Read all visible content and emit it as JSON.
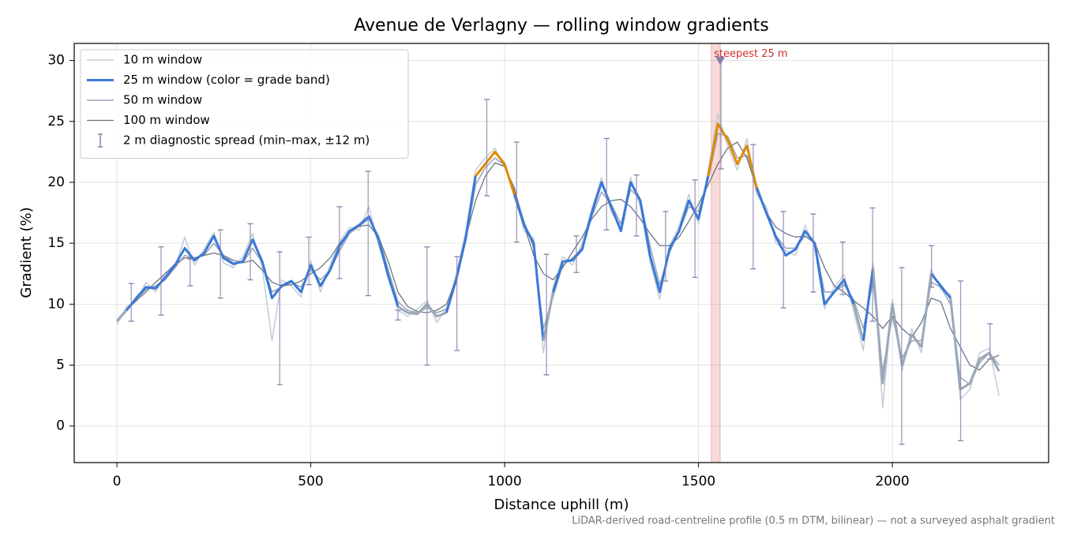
{
  "chart_data": {
    "type": "line",
    "title": "Avenue de Verlagny — rolling window gradients",
    "xlabel": "Distance uphill (m)",
    "ylabel": "Gradient (%)",
    "note": "LiDAR-derived road-centreline profile (0.5 m DTM, bilinear) — not a surveyed asphalt gradient",
    "xlim": [
      -110,
      2403
    ],
    "ylim": [
      -3,
      31.4
    ],
    "xticks": [
      0,
      500,
      1000,
      1500,
      2000
    ],
    "yticks": [
      0,
      5,
      10,
      15,
      20,
      25,
      30
    ],
    "grid": true,
    "legend": "upper left",
    "x": [
      0,
      25,
      50,
      75,
      100,
      125,
      150,
      175,
      200,
      225,
      250,
      275,
      300,
      325,
      350,
      375,
      400,
      425,
      450,
      475,
      500,
      525,
      550,
      575,
      600,
      625,
      650,
      675,
      700,
      725,
      750,
      775,
      800,
      825,
      850,
      875,
      900,
      925,
      950,
      975,
      1000,
      1025,
      1050,
      1075,
      1100,
      1125,
      1150,
      1175,
      1200,
      1225,
      1250,
      1275,
      1300,
      1325,
      1350,
      1375,
      1400,
      1425,
      1450,
      1475,
      1500,
      1525,
      1550,
      1575,
      1600,
      1625,
      1650,
      1675,
      1700,
      1725,
      1750,
      1775,
      1800,
      1825,
      1850,
      1875,
      1900,
      1925,
      1950,
      1975,
      2000,
      2025,
      2050,
      2075,
      2100,
      2125,
      2150,
      2175,
      2200,
      2225,
      2250,
      2275
    ],
    "series": [
      {
        "name": "10 m window",
        "color": "#c3ccd8",
        "width": 1.5,
        "values": [
          8.3,
          9.8,
          10.2,
          11.8,
          11.0,
          12.6,
          13.0,
          15.5,
          13.2,
          14.5,
          15.9,
          13.4,
          13.0,
          13.9,
          15.8,
          13.0,
          7.0,
          12.0,
          11.5,
          10.6,
          13.6,
          11.0,
          13.2,
          15.2,
          16.3,
          16.1,
          18.0,
          14.8,
          12.6,
          9.5,
          9.0,
          9.6,
          10.3,
          8.5,
          9.7,
          12.4,
          16.0,
          21.0,
          22.0,
          22.8,
          21.2,
          19.6,
          16.0,
          15.4,
          6.0,
          11.4,
          13.9,
          13.2,
          15.0,
          17.9,
          20.4,
          17.5,
          16.5,
          20.4,
          18.0,
          13.5,
          10.4,
          14.8,
          16.4,
          19.0,
          16.6,
          21.0,
          25.6,
          23.0,
          21.0,
          23.6,
          19.0,
          18.0,
          15.0,
          14.4,
          14.0,
          16.5,
          14.6,
          9.6,
          11.4,
          12.4,
          9.5,
          6.2,
          13.4,
          1.5,
          10.4,
          4.5,
          8.0,
          6.0,
          12.9,
          11.2,
          10.8,
          2.2,
          3.0,
          6.0,
          6.4,
          2.5
        ]
      },
      {
        "name": "25 m window (color = grade band)",
        "color": "#3a78d8",
        "width": 3,
        "banded": true,
        "band_thresholds": [
          10,
          20,
          25
        ],
        "band_colors": [
          "#9aa8b8",
          "#3a78d8",
          "#e08a00",
          "#b01818"
        ],
        "values": [
          8.6,
          9.5,
          10.5,
          11.4,
          11.3,
          12.2,
          13.2,
          14.6,
          13.6,
          14.2,
          15.6,
          13.8,
          13.3,
          13.5,
          15.3,
          13.5,
          10.5,
          11.5,
          11.9,
          11.0,
          13.2,
          11.5,
          12.8,
          14.8,
          16.0,
          16.5,
          17.2,
          15.3,
          12.3,
          9.8,
          9.3,
          9.2,
          10.0,
          9.0,
          9.3,
          12.0,
          15.5,
          20.5,
          21.5,
          22.5,
          21.5,
          19.0,
          16.5,
          15.0,
          7.0,
          11.0,
          13.5,
          13.6,
          14.5,
          17.5,
          20.0,
          18.0,
          16.0,
          20.0,
          18.5,
          14.0,
          11.0,
          14.5,
          16.0,
          18.5,
          17.0,
          20.5,
          24.8,
          23.5,
          21.5,
          23.0,
          19.5,
          17.5,
          15.5,
          14.0,
          14.5,
          16.0,
          15.0,
          10.0,
          11.0,
          12.0,
          10.0,
          7.0,
          13.0,
          3.5,
          10.0,
          5.0,
          7.5,
          6.5,
          12.5,
          11.5,
          10.5,
          3.0,
          3.5,
          5.5,
          6.0,
          4.5
        ]
      },
      {
        "name": "50 m window",
        "color": "#98a4b4",
        "width": 1.5,
        "values": [
          8.7,
          9.6,
          10.4,
          11.2,
          11.5,
          12.0,
          13.0,
          14.0,
          13.8,
          14.0,
          15.0,
          14.0,
          13.4,
          13.4,
          14.6,
          13.4,
          11.0,
          11.4,
          11.8,
          11.4,
          12.8,
          12.0,
          12.8,
          14.4,
          15.8,
          16.4,
          17.0,
          15.6,
          12.8,
          10.2,
          9.5,
          9.3,
          9.7,
          9.3,
          9.6,
          11.8,
          15.2,
          19.8,
          21.2,
          22.0,
          21.4,
          19.4,
          16.8,
          14.6,
          8.0,
          10.6,
          13.2,
          13.8,
          14.6,
          17.2,
          19.2,
          18.2,
          16.6,
          19.4,
          18.6,
          14.8,
          11.6,
          14.2,
          16.0,
          18.0,
          17.6,
          20.2,
          24.0,
          23.8,
          22.0,
          22.2,
          19.8,
          17.6,
          15.6,
          14.6,
          14.6,
          15.6,
          15.0,
          11.0,
          11.0,
          11.6,
          10.4,
          8.0,
          11.8,
          4.5,
          9.0,
          5.6,
          7.0,
          7.0,
          11.8,
          11.4,
          10.0,
          4.0,
          3.4,
          5.2,
          6.0,
          5.0
        ]
      },
      {
        "name": "100 m window",
        "color": "#6c7585",
        "width": 1.3,
        "values": [
          8.6,
          9.5,
          10.3,
          11.0,
          11.8,
          12.5,
          13.3,
          13.8,
          13.8,
          14.0,
          14.2,
          14.0,
          13.6,
          13.4,
          13.6,
          12.8,
          11.8,
          11.5,
          11.6,
          11.9,
          12.5,
          13.0,
          13.8,
          15.0,
          16.0,
          16.4,
          16.5,
          15.5,
          13.5,
          11.0,
          9.8,
          9.4,
          9.3,
          9.5,
          10.0,
          12.0,
          15.5,
          18.5,
          20.5,
          21.6,
          21.3,
          19.5,
          16.5,
          14.0,
          12.5,
          12.0,
          13.0,
          14.3,
          15.5,
          17.0,
          18.0,
          18.5,
          18.6,
          18.0,
          17.0,
          15.8,
          14.8,
          14.8,
          15.5,
          16.8,
          18.2,
          19.8,
          21.5,
          22.8,
          23.3,
          22.0,
          19.5,
          17.5,
          16.3,
          15.8,
          15.5,
          15.6,
          15.0,
          13.0,
          11.5,
          11.0,
          10.3,
          9.7,
          9.0,
          8.0,
          9.0,
          8.0,
          7.3,
          8.5,
          10.5,
          10.2,
          8.0,
          6.5,
          5.0,
          4.6,
          5.5,
          5.8
        ]
      }
    ],
    "error_bars": {
      "name": "2 m diagnostic spread (min–max, ±12 m)",
      "color": "#8a7fae",
      "x": [
        37,
        114,
        189,
        267,
        344,
        420,
        495,
        574,
        648,
        725,
        800,
        877,
        954,
        1031,
        1108,
        1185,
        1263,
        1340,
        1415,
        1491,
        1558,
        1641,
        1719,
        1796,
        1872,
        1949,
        2024,
        2101,
        2176,
        2252
      ],
      "low": [
        8.6,
        9.1,
        11.5,
        10.5,
        12.0,
        3.4,
        11.6,
        12.1,
        10.7,
        8.7,
        5.0,
        6.2,
        18.9,
        15.1,
        4.2,
        12.6,
        16.1,
        15.6,
        11.9,
        12.2,
        21.1,
        12.9,
        9.7,
        11.0,
        10.8,
        8.6,
        -1.5,
        11.4,
        -1.2,
        5.5
      ],
      "high": [
        11.7,
        14.7,
        13.7,
        16.1,
        16.6,
        14.3,
        15.5,
        18.0,
        20.9,
        9.5,
        14.7,
        13.9,
        26.8,
        23.3,
        14.1,
        15.6,
        23.6,
        20.6,
        17.6,
        20.2,
        30.1,
        23.1,
        17.6,
        17.4,
        15.1,
        17.9,
        13.0,
        14.8,
        11.9,
        8.4
      ]
    },
    "annotation": {
      "text": "steepest 25 m",
      "x": 1556,
      "y": 30,
      "span": [
        1533,
        1556
      ],
      "color": "#d03030",
      "marker_color": "#8a7fae"
    }
  }
}
